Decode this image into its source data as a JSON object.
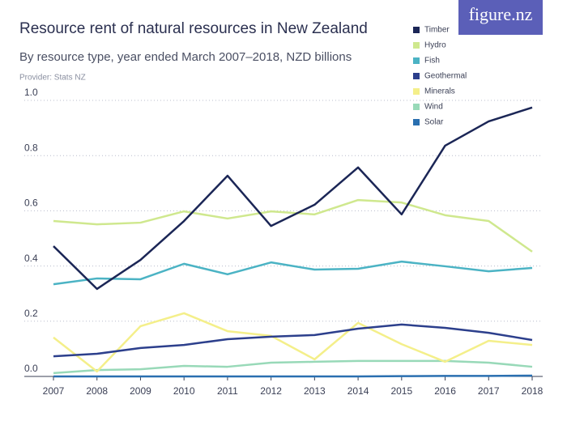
{
  "chart_data": {
    "type": "line",
    "title": "Resource rent of natural resources in New Zealand",
    "subtitle": "By resource type, year ended March 2007–2018, NZD billions",
    "provider": "Provider: Stats NZ",
    "logo": "figure.nz",
    "categories": [
      "2007",
      "2008",
      "2009",
      "2010",
      "2011",
      "2012",
      "2013",
      "2014",
      "2015",
      "2016",
      "2017",
      "2018"
    ],
    "series": [
      {
        "name": "Timber",
        "color": "#1b2656",
        "values": [
          0.472,
          0.317,
          0.422,
          0.563,
          0.727,
          0.545,
          0.622,
          0.757,
          0.587,
          0.836,
          0.924,
          0.974
        ]
      },
      {
        "name": "Hydro",
        "color": "#cfe88e",
        "values": [
          0.563,
          0.551,
          0.557,
          0.598,
          0.572,
          0.598,
          0.587,
          0.639,
          0.63,
          0.584,
          0.563,
          0.452
        ]
      },
      {
        "name": "Fish",
        "color": "#4bb3c4",
        "values": [
          0.334,
          0.355,
          0.352,
          0.408,
          0.37,
          0.413,
          0.387,
          0.39,
          0.416,
          0.399,
          0.381,
          0.393
        ]
      },
      {
        "name": "Geothermal",
        "color": "#2c3f8c",
        "values": [
          0.073,
          0.082,
          0.103,
          0.114,
          0.135,
          0.144,
          0.15,
          0.173,
          0.188,
          0.176,
          0.158,
          0.132
        ]
      },
      {
        "name": "Minerals",
        "color": "#f4ef8a",
        "values": [
          0.141,
          0.018,
          0.182,
          0.229,
          0.164,
          0.147,
          0.062,
          0.194,
          0.117,
          0.053,
          0.129,
          0.114
        ]
      },
      {
        "name": "Wind",
        "color": "#98d9b8",
        "values": [
          0.012,
          0.023,
          0.026,
          0.038,
          0.035,
          0.05,
          0.053,
          0.056,
          0.056,
          0.056,
          0.05,
          0.035
        ]
      },
      {
        "name": "Solar",
        "color": "#2a6fb0",
        "values": [
          0,
          0,
          0,
          0,
          0,
          0,
          0,
          0,
          0.001,
          0.002,
          0.002,
          0.003
        ]
      }
    ],
    "ylim": [
      0,
      1
    ],
    "yticks": [
      {
        "value": 0,
        "label": "0.0"
      },
      0.2,
      0.4,
      0.6,
      0.8,
      {
        "value": 1,
        "label": "1.0"
      }
    ],
    "grid": true
  }
}
